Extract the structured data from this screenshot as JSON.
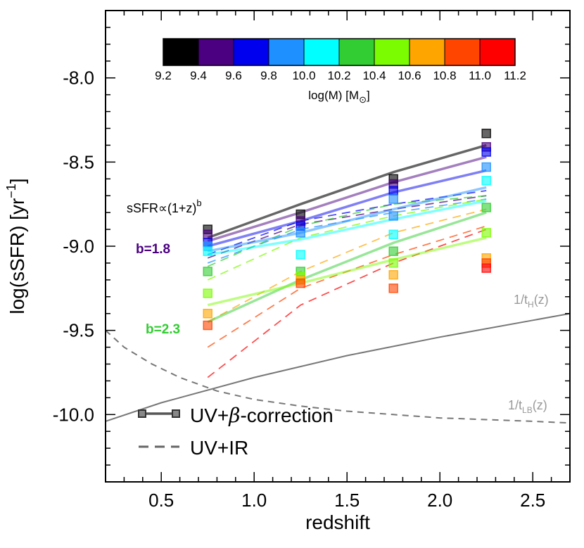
{
  "chart_data": {
    "type": "line",
    "xlabel": "redshift",
    "ylabel": "log(sSFR) [yr",
    "ylabel_sup": "−1",
    "ylabel_end": "]",
    "xlim": [
      0.2,
      2.7
    ],
    "ylim": [
      -10.4,
      -7.6
    ],
    "x_ticks": [
      0.5,
      1.0,
      1.5,
      2.0,
      2.5
    ],
    "x_tick_labels": [
      "0.5",
      "1.0",
      "1.5",
      "2.0",
      "2.5"
    ],
    "y_ticks": [
      -8.0,
      -8.5,
      -9.0,
      -9.5,
      -10.0
    ],
    "y_tick_labels": [
      "-8.0",
      "-8.5",
      "-9.0",
      "-9.5",
      "-10.0"
    ],
    "colorbar": {
      "title": "log(M) [M",
      "title_sub": "⊙",
      "title_end": "]",
      "colors": [
        "#000000",
        "#4a0080",
        "#0000ee",
        "#1e90ff",
        "#00ffff",
        "#32cd32",
        "#7cfc00",
        "#ffa500",
        "#ff4500",
        "#ff0000"
      ],
      "tick_labels": [
        "9.2",
        "9.4",
        "9.6",
        "9.8",
        "10.0",
        "10.2",
        "10.4",
        "10.6",
        "10.8",
        "11.0",
        "11.2"
      ]
    },
    "redshift_bins": [
      0.75,
      1.25,
      1.75,
      2.25
    ],
    "series_uv_beta": [
      {
        "name": "9.2-9.4",
        "color": "#000000",
        "y": [
          -8.95,
          -8.75,
          -8.56,
          -8.4
        ]
      },
      {
        "name": "9.4-9.6",
        "color": "#4a0080",
        "y": [
          -8.97,
          -8.8,
          -8.62,
          -8.47
        ]
      },
      {
        "name": "9.6-9.8",
        "color": "#0000ee",
        "y": [
          -9.0,
          -8.85,
          -8.68,
          -8.55
        ]
      },
      {
        "name": "9.8-10.0",
        "color": "#1e90ff",
        "y": [
          -9.03,
          -8.92,
          -8.78,
          -8.65
        ]
      },
      {
        "name": "10.0-10.2",
        "color": "#00ffff",
        "y": [
          -9.05,
          -8.96,
          -8.84,
          -8.73
        ]
      },
      {
        "name": "10.2-10.4",
        "color": "#32cd32",
        "y": [
          -9.45,
          -9.2,
          -8.98,
          -8.8
        ]
      },
      {
        "name": "10.4-10.6",
        "color": "#7cfc00",
        "y": [
          -9.35,
          -9.22,
          -9.08,
          -8.95
        ]
      }
    ],
    "series_uv_ir": [
      {
        "name": "9.4-9.6",
        "color": "#4a0080",
        "y": [
          -9.07,
          -8.87,
          -8.78,
          -8.7
        ]
      },
      {
        "name": "9.6-9.8",
        "color": "#0000ee",
        "y": [
          -9.05,
          -8.85,
          -8.75,
          -8.67
        ]
      },
      {
        "name": "9.8-10.0",
        "color": "#1e90ff",
        "y": [
          -9.1,
          -8.9,
          -8.8,
          -8.72
        ]
      },
      {
        "name": "10.2-10.4",
        "color": "#32cd32",
        "y": [
          -9.12,
          -8.88,
          -8.75,
          -8.7
        ]
      },
      {
        "name": "10.4-10.6",
        "color": "#7cfc00",
        "y": [
          -9.2,
          -8.95,
          -8.82,
          -8.72
        ]
      },
      {
        "name": "10.6-10.8",
        "color": "#ffa500",
        "y": [
          -9.45,
          -9.15,
          -8.92,
          -8.78
        ]
      },
      {
        "name": "10.8-11.0",
        "color": "#ff4500",
        "y": [
          -9.6,
          -9.25,
          -9.05,
          -8.88
        ]
      },
      {
        "name": "11.0-11.2",
        "color": "#ff0000",
        "y": [
          -9.78,
          -9.35,
          -9.1,
          -8.9
        ]
      }
    ],
    "points": [
      {
        "x": 0.75,
        "y": -8.9,
        "color": "#000000"
      },
      {
        "x": 0.75,
        "y": -8.93,
        "color": "#4a0080"
      },
      {
        "x": 0.75,
        "y": -8.98,
        "color": "#0000ee"
      },
      {
        "x": 0.75,
        "y": -9.0,
        "color": "#1e90ff"
      },
      {
        "x": 0.75,
        "y": -9.03,
        "color": "#00ffff"
      },
      {
        "x": 0.75,
        "y": -9.15,
        "color": "#32cd32"
      },
      {
        "x": 0.75,
        "y": -9.28,
        "color": "#7cfc00"
      },
      {
        "x": 0.75,
        "y": -9.4,
        "color": "#ffa500"
      },
      {
        "x": 0.75,
        "y": -9.47,
        "color": "#ff4500"
      },
      {
        "x": 1.25,
        "y": -8.81,
        "color": "#000000"
      },
      {
        "x": 1.25,
        "y": -8.85,
        "color": "#4a0080"
      },
      {
        "x": 1.25,
        "y": -8.88,
        "color": "#0000ee"
      },
      {
        "x": 1.25,
        "y": -8.92,
        "color": "#1e90ff"
      },
      {
        "x": 1.25,
        "y": -9.05,
        "color": "#00ffff"
      },
      {
        "x": 1.25,
        "y": -9.15,
        "color": "#32cd32"
      },
      {
        "x": 1.25,
        "y": -9.18,
        "color": "#7cfc00"
      },
      {
        "x": 1.25,
        "y": -9.2,
        "color": "#ffa500"
      },
      {
        "x": 1.25,
        "y": -9.22,
        "color": "#ff4500"
      },
      {
        "x": 1.75,
        "y": -8.6,
        "color": "#000000"
      },
      {
        "x": 1.75,
        "y": -8.63,
        "color": "#4a0080"
      },
      {
        "x": 1.75,
        "y": -8.67,
        "color": "#0000ee"
      },
      {
        "x": 1.75,
        "y": -8.72,
        "color": "#1e90ff"
      },
      {
        "x": 1.75,
        "y": -8.82,
        "color": "#1e90ff"
      },
      {
        "x": 1.75,
        "y": -8.93,
        "color": "#00ffff"
      },
      {
        "x": 1.75,
        "y": -9.03,
        "color": "#32cd32"
      },
      {
        "x": 1.75,
        "y": -9.1,
        "color": "#7cfc00"
      },
      {
        "x": 1.75,
        "y": -9.17,
        "color": "#ffa500"
      },
      {
        "x": 1.75,
        "y": -9.25,
        "color": "#ff4500"
      },
      {
        "x": 2.25,
        "y": -8.33,
        "color": "#000000"
      },
      {
        "x": 2.25,
        "y": -8.41,
        "color": "#4a0080"
      },
      {
        "x": 2.25,
        "y": -8.44,
        "color": "#0000ee"
      },
      {
        "x": 2.25,
        "y": -8.53,
        "color": "#1e90ff"
      },
      {
        "x": 2.25,
        "y": -8.61,
        "color": "#00ffff"
      },
      {
        "x": 2.25,
        "y": -8.77,
        "color": "#32cd32"
      },
      {
        "x": 2.25,
        "y": -8.92,
        "color": "#7cfc00"
      },
      {
        "x": 2.25,
        "y": -9.07,
        "color": "#ffa500"
      },
      {
        "x": 2.25,
        "y": -9.1,
        "color": "#ff4500"
      },
      {
        "x": 2.25,
        "y": -9.13,
        "color": "#ff0000"
      }
    ],
    "curve_tH": {
      "label": "1/t",
      "label_sub": "H",
      "label_end": "(z)",
      "x": [
        0.2,
        0.5,
        1.0,
        1.5,
        2.0,
        2.5,
        2.7
      ],
      "y": [
        -10.04,
        -9.93,
        -9.78,
        -9.65,
        -9.54,
        -9.44,
        -9.4
      ]
    },
    "curve_tLB": {
      "label": "1/t",
      "label_sub": "LB",
      "label_end": "(z)",
      "x": [
        0.2,
        0.3,
        0.45,
        0.6,
        0.8,
        1.0,
        1.25,
        1.5,
        1.75,
        2.0,
        2.25,
        2.5,
        2.7
      ],
      "y": [
        -9.5,
        -9.6,
        -9.7,
        -9.78,
        -9.86,
        -9.91,
        -9.95,
        -9.98,
        -10.0,
        -10.02,
        -10.03,
        -10.04,
        -10.05
      ]
    },
    "legend": [
      {
        "label": "UV+",
        "label_italic": "β",
        "label_end": "-correction",
        "style": "solid"
      },
      {
        "label": "UV+IR",
        "style": "dashed"
      }
    ],
    "annotations": {
      "relation_pre": "sSFR∝(1+z)",
      "relation_sup": "b",
      "b1_label": "b=1.8",
      "b1_color": "#4a0080",
      "b2_label": "b=2.3",
      "b2_color": "#32cd32"
    }
  }
}
